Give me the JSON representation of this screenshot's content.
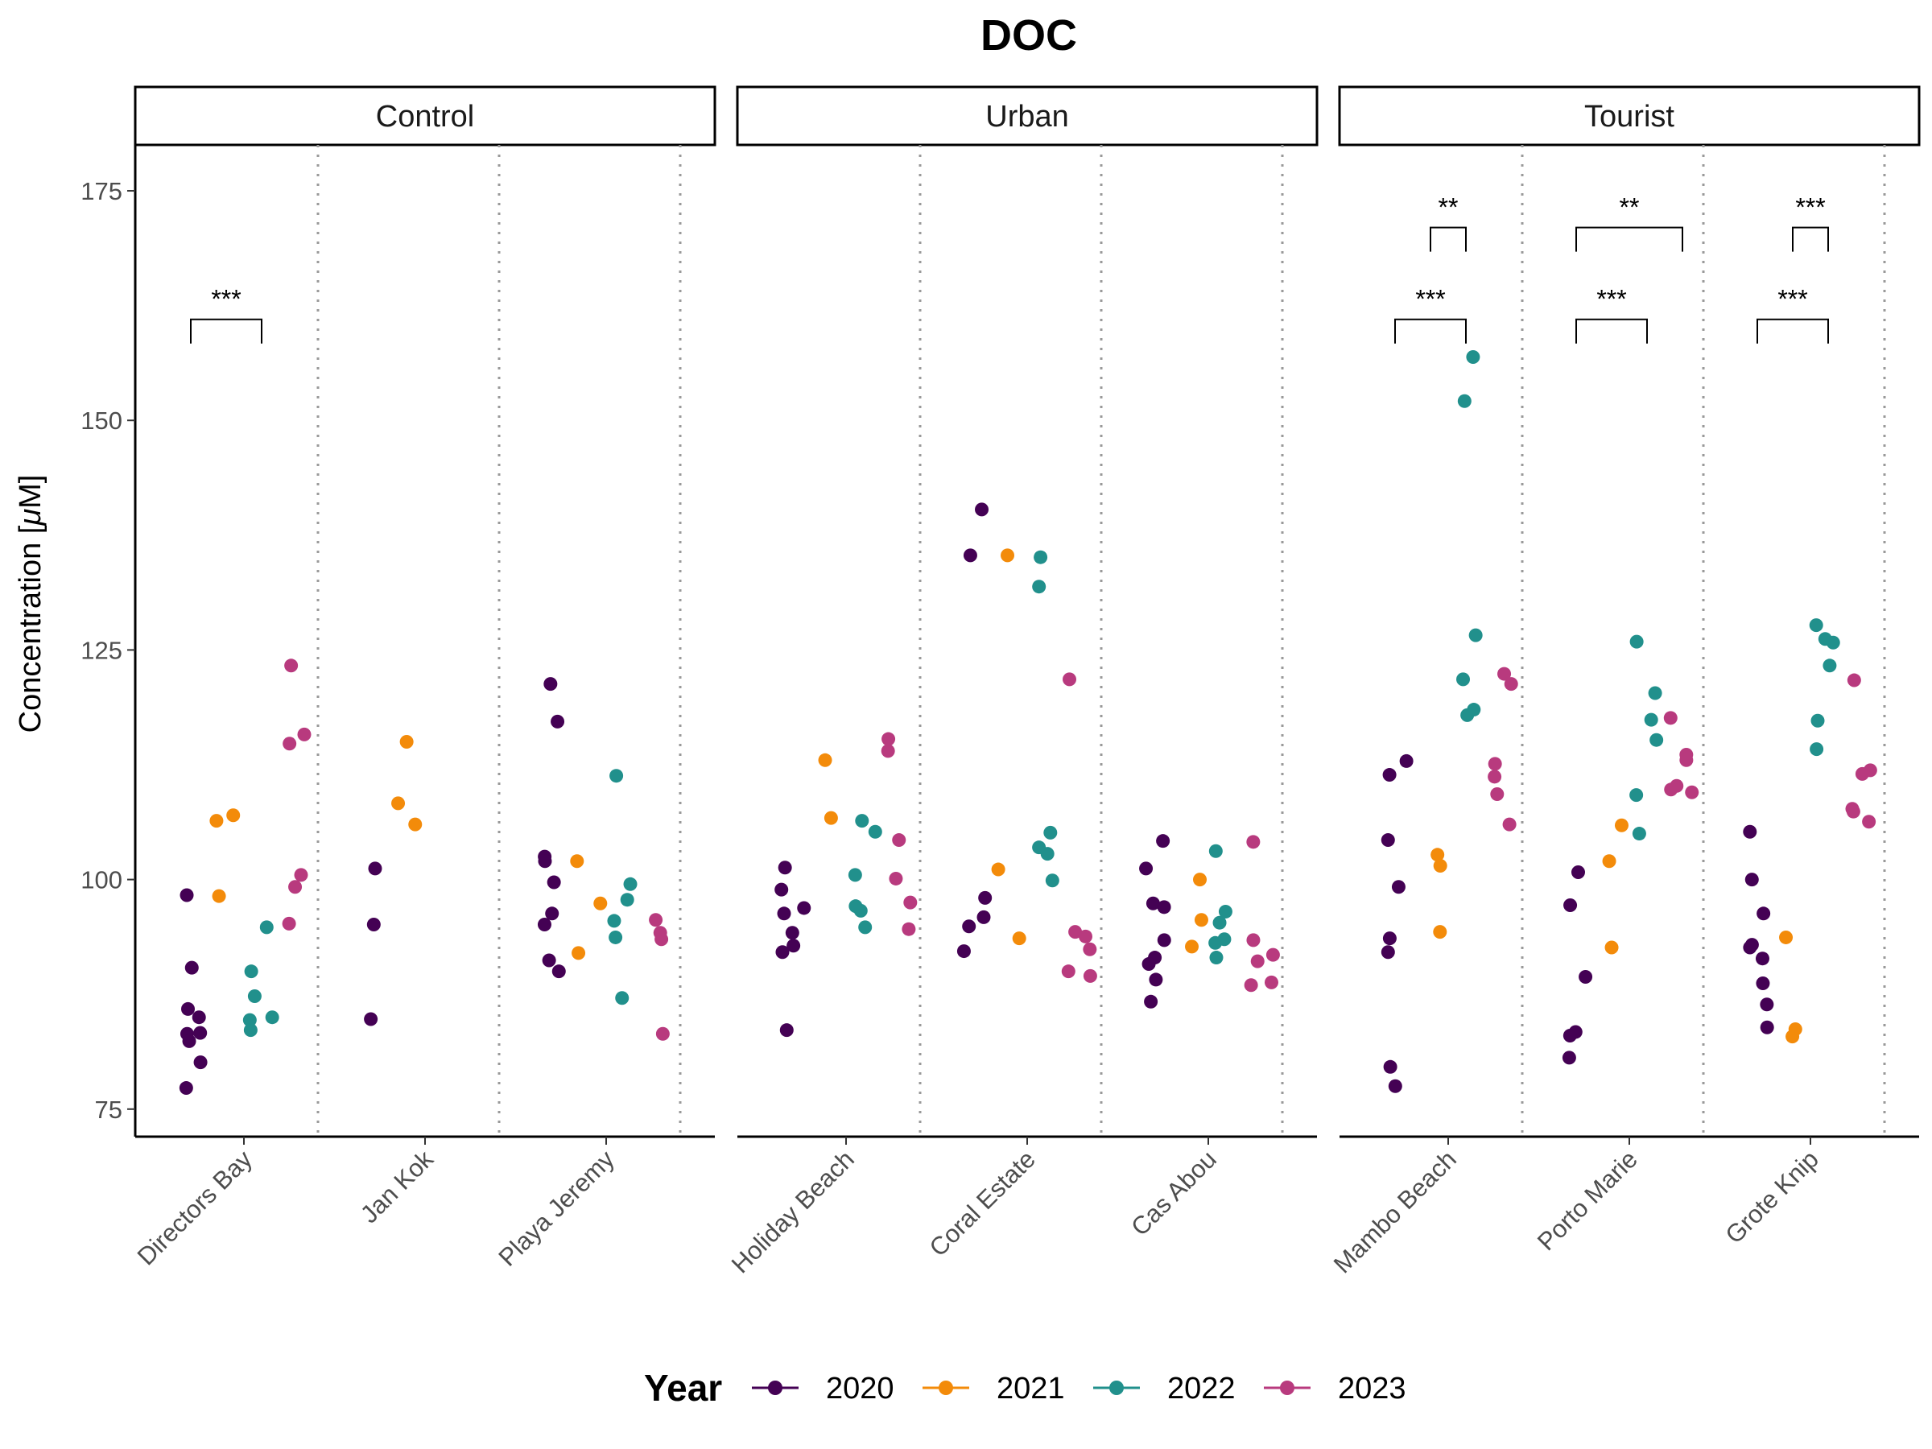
{
  "chart_data": {
    "type": "scatter",
    "title": "DOC",
    "ylabel_prefix": "Concentration [",
    "ylabel_mu": "μ",
    "ylabel_suffix": "M]",
    "ylim": [
      72,
      180
    ],
    "yticks": [
      75,
      100,
      125,
      150,
      175
    ],
    "legend": {
      "title": "Year",
      "placement": "bottom",
      "entries": [
        {
          "name": "2020",
          "color": "#440154"
        },
        {
          "name": "2021",
          "color": "#F38B0A"
        },
        {
          "name": "2022",
          "color": "#21908C"
        },
        {
          "name": "2023",
          "color": "#B83A7E"
        }
      ]
    },
    "facets": [
      {
        "label": "Control",
        "sites": [
          {
            "name": "Directors Bay",
            "points": {
              "2020": [
                98.3,
                90.4,
                85.9,
                85.0,
                83.3,
                83.2,
                82.4,
                80.1,
                77.3
              ],
              "2021": [
                107.0,
                106.4,
                98.2
              ],
              "2022": [
                94.8,
                90.0,
                87.3,
                85.0,
                84.7,
                83.6
              ],
              "2023": [
                123.3,
                115.8,
                114.8,
                100.5,
                99.2,
                95.2
              ]
            }
          },
          {
            "name": "Jan Kok",
            "points": {
              "2020": [
                101.2,
                95.1,
                84.8
              ],
              "2021": [
                115.0,
                108.3,
                106.0
              ]
            }
          },
          {
            "name": "Playa Jeremy",
            "points": {
              "2020": [
                121.3,
                117.2,
                102.5,
                102.0,
                99.7,
                96.3,
                95.1,
                91.2,
                90.0
              ],
              "2021": [
                102.0,
                97.4,
                92.0
              ],
              "2022": [
                111.3,
                99.5,
                97.8,
                95.5,
                93.7,
                87.1
              ],
              "2023": [
                95.6,
                94.2,
                93.5,
                83.2
              ]
            }
          }
        ],
        "annotations": [
          {
            "from": "2020",
            "to": "2022",
            "site": 0,
            "label": "***",
            "y": 161
          }
        ]
      },
      {
        "label": "Urban",
        "sites": [
          {
            "name": "Holiday Beach",
            "points": {
              "2020": [
                101.3,
                98.9,
                96.9,
                96.3,
                94.2,
                92.8,
                92.1,
                83.6
              ],
              "2021": [
                113.0,
                106.7
              ],
              "2022": [
                106.4,
                105.2,
                100.5,
                97.1,
                96.6,
                94.8
              ],
              "2023": [
                115.3,
                114.0,
                104.3,
                100.1,
                97.5,
                94.6
              ]
            }
          },
          {
            "name": "Coral Estate",
            "points": {
              "2020": [
                140.3,
                135.3,
                98.0,
                95.9,
                94.9,
                92.2
              ],
              "2021": [
                135.3,
                101.1,
                93.6
              ],
              "2022": [
                135.1,
                131.9,
                105.1,
                103.5,
                102.8,
                99.9
              ],
              "2023": [
                121.8,
                94.3,
                93.8,
                92.4,
                90.0,
                89.5
              ]
            }
          },
          {
            "name": "Cas Abou",
            "points": {
              "2020": [
                104.2,
                101.2,
                97.4,
                97.0,
                93.4,
                91.5,
                90.8,
                89.1,
                86.7
              ],
              "2021": [
                100.0,
                95.6,
                92.7
              ],
              "2022": [
                103.1,
                96.5,
                95.3,
                93.5,
                93.1,
                91.5
              ],
              "2023": [
                104.1,
                93.4,
                91.8,
                91.1,
                88.8,
                88.5
              ]
            }
          }
        ],
        "annotations": []
      },
      {
        "label": "Tourist",
        "sites": [
          {
            "name": "Mambo Beach",
            "points": {
              "2020": [
                112.9,
                111.4,
                104.3,
                99.2,
                93.6,
                92.1,
                79.6,
                77.5
              ],
              "2021": [
                102.7,
                101.5,
                94.3
              ],
              "2022": [
                156.9,
                152.1,
                126.6,
                121.8,
                118.5,
                117.9
              ],
              "2023": [
                122.4,
                121.3,
                112.6,
                111.2,
                109.3,
                106.0
              ]
            }
          },
          {
            "name": "Porto Marie",
            "points": {
              "2020": [
                100.8,
                97.2,
                89.4,
                83.4,
                83.0,
                80.6
              ],
              "2021": [
                105.9,
                102.0,
                92.6
              ],
              "2022": [
                125.9,
                120.3,
                117.4,
                115.2,
                109.2,
                105.0
              ],
              "2023": [
                117.6,
                113.6,
                113.0,
                110.2,
                109.8,
                109.5
              ]
            }
          },
          {
            "name": "Grote Knip",
            "points": {
              "2020": [
                105.2,
                100.0,
                96.3,
                92.9,
                92.6,
                91.4,
                88.7,
                86.4,
                83.9
              ],
              "2021": [
                93.7,
                83.7,
                82.9
              ],
              "2022": [
                127.7,
                126.2,
                125.8,
                123.3,
                117.3,
                114.2
              ],
              "2023": [
                121.7,
                111.9,
                111.5,
                107.7,
                107.4,
                106.3
              ]
            }
          }
        ],
        "annotations": [
          {
            "from": "2020",
            "to": "2022",
            "site": 0,
            "label": "***",
            "y": 161
          },
          {
            "from": "2021",
            "to": "2022",
            "site": 0,
            "label": "**",
            "y": 171
          },
          {
            "from": "2020",
            "to": "2022",
            "site": 1,
            "label": "***",
            "y": 161
          },
          {
            "from": "2020",
            "to": "2023",
            "site": 1,
            "label": "**",
            "y": 171
          },
          {
            "from": "2020",
            "to": "2022",
            "site": 2,
            "label": "***",
            "y": 161
          },
          {
            "from": "2021",
            "to": "2022",
            "site": 2,
            "label": "***",
            "y": 171
          }
        ]
      }
    ]
  }
}
